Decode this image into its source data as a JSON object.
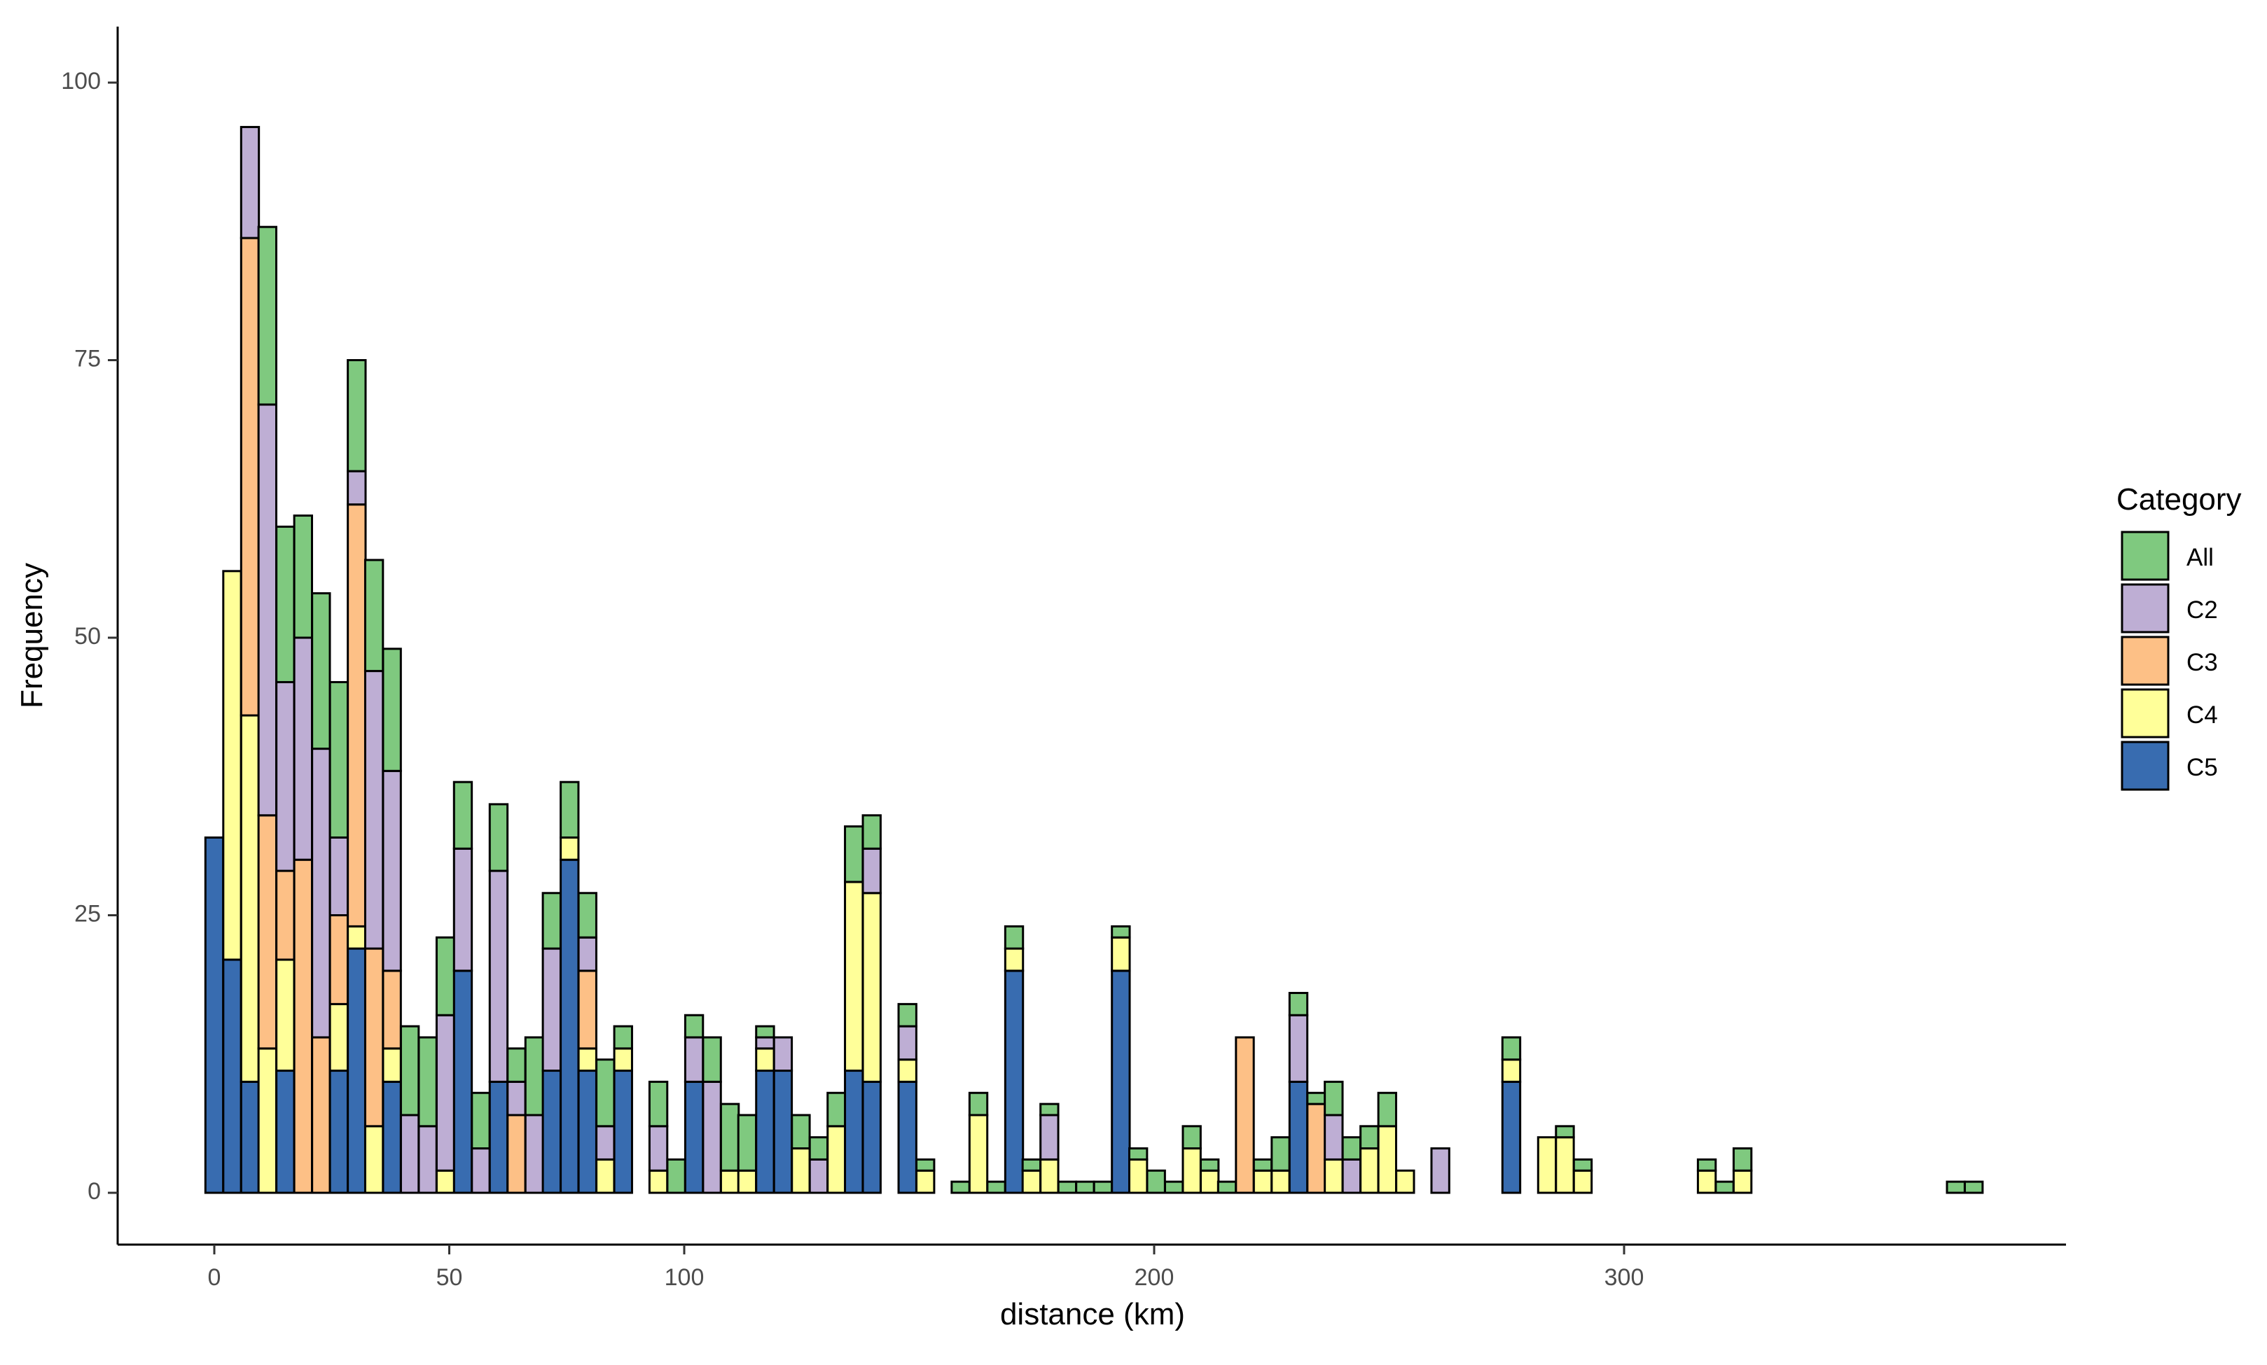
{
  "chart_data": {
    "type": "bar",
    "stacked": true,
    "xlabel": "distance (km)",
    "ylabel": "Frequency",
    "xlim": [
      -20,
      395
    ],
    "ylim": [
      -5,
      105
    ],
    "xticks": [
      0,
      50,
      100,
      200,
      300
    ],
    "yticks": [
      0,
      25,
      50,
      75,
      100
    ],
    "bin_width": 3.78,
    "x": [
      0,
      3.8,
      7.6,
      11.3,
      15.1,
      18.9,
      22.7,
      26.5,
      30.3,
      34.0,
      37.8,
      41.6,
      45.4,
      49.2,
      52.9,
      56.7,
      60.5,
      64.3,
      68.1,
      71.8,
      75.6,
      79.4,
      83.2,
      87.0,
      90.8,
      94.5,
      98.3,
      102.1,
      105.9,
      109.7,
      113.4,
      117.2,
      121.0,
      124.8,
      128.6,
      132.4,
      136.1,
      139.9,
      143.7,
      147.5,
      151.3,
      155.0,
      158.8,
      162.6,
      166.4,
      170.2,
      173.9,
      177.7,
      181.5,
      185.3,
      189.1,
      192.9,
      196.6,
      200.4,
      204.2,
      208.0,
      211.8,
      215.5,
      219.3,
      223.1,
      226.9,
      230.7,
      234.5,
      238.2,
      242.0,
      245.8,
      249.6,
      253.4,
      257.1,
      260.9,
      264.7,
      268.5,
      272.3,
      276.0,
      279.8,
      283.6,
      287.4,
      291.2,
      295.0,
      298.7,
      302.5,
      306.3,
      310.1,
      313.9,
      317.6,
      321.4,
      325.2,
      329.0,
      332.8,
      336.6,
      340.3,
      344.1,
      347.9,
      351.7,
      355.5,
      359.2,
      363.0,
      366.8,
      370.6,
      374.4
    ],
    "series": [
      {
        "name": "C5",
        "color": "#386cb0",
        "values": [
          32,
          21,
          10,
          0,
          11,
          0,
          0,
          11,
          22,
          0,
          10,
          0,
          0,
          0,
          20,
          0,
          10,
          0,
          0,
          11,
          30,
          11,
          0,
          11,
          0,
          0,
          0,
          10,
          0,
          0,
          0,
          11,
          11,
          0,
          0,
          0,
          11,
          10,
          0,
          10,
          0,
          0,
          0,
          0,
          0,
          20,
          0,
          0,
          0,
          0,
          0,
          20,
          0,
          0,
          0,
          0,
          0,
          0,
          0,
          0,
          0,
          10,
          0,
          0,
          0,
          0,
          0,
          0,
          0,
          0,
          0,
          0,
          0,
          10,
          0,
          0,
          0,
          0,
          0,
          0,
          0,
          0,
          0,
          0,
          0,
          0,
          0,
          0,
          0,
          0,
          0,
          0,
          0,
          0,
          0,
          0,
          0,
          0,
          0,
          0
        ]
      },
      {
        "name": "C4",
        "color": "#ffff99",
        "values": [
          0,
          35,
          33,
          13,
          10,
          0,
          0,
          6,
          2,
          6,
          3,
          0,
          0,
          2,
          0,
          0,
          0,
          0,
          0,
          0,
          2,
          2,
          3,
          2,
          0,
          2,
          0,
          0,
          0,
          2,
          2,
          2,
          0,
          4,
          0,
          6,
          17,
          17,
          0,
          2,
          2,
          0,
          0,
          7,
          0,
          2,
          2,
          3,
          0,
          0,
          0,
          3,
          3,
          0,
          0,
          4,
          2,
          0,
          0,
          2,
          2,
          0,
          0,
          3,
          0,
          4,
          6,
          2,
          0,
          0,
          0,
          0,
          0,
          2,
          0,
          5,
          5,
          2,
          0,
          0,
          0,
          0,
          0,
          0,
          2,
          0,
          2,
          0,
          0,
          0,
          0,
          0,
          0,
          0,
          0,
          0,
          0,
          0,
          0,
          0
        ]
      },
      {
        "name": "C3",
        "color": "#fdc086",
        "values": [
          0,
          0,
          43,
          21,
          8,
          30,
          14,
          8,
          38,
          16,
          7,
          0,
          0,
          0,
          0,
          0,
          0,
          7,
          0,
          0,
          0,
          7,
          0,
          0,
          0,
          0,
          0,
          0,
          0,
          0,
          0,
          0,
          0,
          0,
          0,
          0,
          0,
          0,
          0,
          0,
          0,
          0,
          0,
          0,
          0,
          0,
          0,
          0,
          0,
          0,
          0,
          0,
          0,
          0,
          0,
          0,
          0,
          0,
          14,
          0,
          0,
          0,
          8,
          0,
          0,
          0,
          0,
          0,
          0,
          0,
          0,
          0,
          0,
          0,
          0,
          0,
          0,
          0,
          0,
          0,
          0,
          0,
          0,
          0,
          0,
          0,
          0,
          0,
          0,
          0,
          0,
          0,
          0,
          0,
          0,
          0,
          0,
          0,
          0,
          0
        ]
      },
      {
        "name": "C2",
        "color": "#beaed4",
        "values": [
          0,
          0,
          10,
          37,
          17,
          20,
          26,
          7,
          3,
          25,
          18,
          7,
          6,
          14,
          11,
          4,
          19,
          3,
          7,
          11,
          0,
          3,
          3,
          0,
          0,
          4,
          0,
          4,
          10,
          0,
          0,
          1,
          3,
          0,
          3,
          0,
          0,
          4,
          0,
          3,
          0,
          0,
          0,
          0,
          0,
          0,
          0,
          4,
          0,
          0,
          0,
          0,
          0,
          0,
          0,
          0,
          0,
          0,
          0,
          0,
          0,
          6,
          0,
          4,
          3,
          0,
          0,
          0,
          0,
          4,
          0,
          0,
          0,
          0,
          0,
          0,
          0,
          0,
          0,
          0,
          0,
          0,
          0,
          0,
          0,
          0,
          0,
          0,
          0,
          0,
          0,
          0,
          0,
          0,
          0,
          0,
          0,
          0,
          0,
          0
        ]
      },
      {
        "name": "All",
        "color": "#7fc97f",
        "values": [
          0,
          0,
          0,
          16,
          14,
          11,
          14,
          14,
          10,
          10,
          11,
          8,
          8,
          7,
          6,
          5,
          6,
          3,
          7,
          5,
          5,
          4,
          6,
          2,
          0,
          4,
          3,
          2,
          4,
          6,
          5,
          1,
          0,
          3,
          2,
          3,
          5,
          3,
          0,
          2,
          1,
          0,
          1,
          2,
          1,
          2,
          1,
          1,
          1,
          1,
          1,
          1,
          1,
          2,
          1,
          2,
          1,
          1,
          0,
          1,
          3,
          2,
          1,
          3,
          2,
          2,
          3,
          0,
          0,
          0,
          0,
          0,
          0,
          2,
          0,
          0,
          1,
          1,
          0,
          0,
          0,
          0,
          0,
          0,
          1,
          1,
          2,
          0,
          0,
          0,
          0,
          0,
          0,
          0,
          0,
          0,
          0,
          0,
          1,
          1
        ]
      }
    ],
    "legend": {
      "title": "Category",
      "position": "right",
      "entries": [
        {
          "label": "All",
          "color": "#7fc97f"
        },
        {
          "label": "C2",
          "color": "#beaed4"
        },
        {
          "label": "C3",
          "color": "#fdc086"
        },
        {
          "label": "C4",
          "color": "#ffff99"
        },
        {
          "label": "C5",
          "color": "#386cb0"
        }
      ]
    },
    "grid": false
  },
  "labels": {
    "xlabel": "distance (km)",
    "ylabel": "Frequency",
    "legend_title": "Category",
    "yticks": [
      "0",
      "25",
      "50",
      "75",
      "100"
    ],
    "xticks": [
      "0",
      "50",
      "100",
      "200",
      "300"
    ],
    "legend": [
      "All",
      "C2",
      "C3",
      "C4",
      "C5"
    ]
  }
}
